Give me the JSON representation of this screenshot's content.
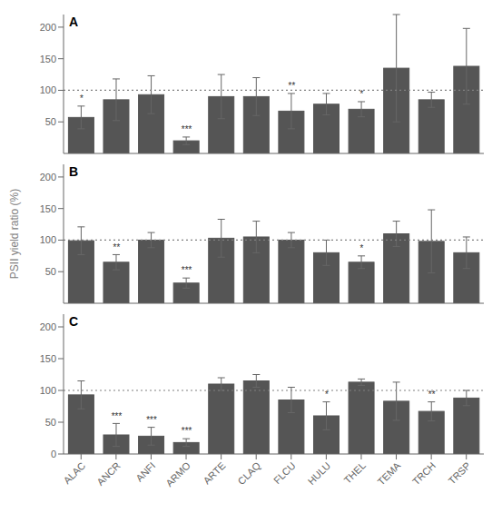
{
  "chart_data": [
    {
      "type": "bar",
      "title": "A",
      "categories": [
        "ALAC",
        "ANCR",
        "ANFI",
        "ARMO",
        "ARTE",
        "CLAQ",
        "FLCU",
        "HULU",
        "THEL",
        "TEMA",
        "TRCH",
        "TRSP"
      ],
      "values": [
        57,
        85,
        93,
        20,
        90,
        90,
        67,
        78,
        70,
        135,
        85,
        138
      ],
      "errors": [
        18,
        33,
        30,
        6,
        35,
        30,
        28,
        17,
        12,
        85,
        12,
        60
      ],
      "annotations": [
        "*",
        null,
        null,
        "***",
        null,
        null,
        "**",
        null,
        "*",
        null,
        null,
        null
      ],
      "color": "#555555",
      "reference_line": 100,
      "ylim": [
        0,
        220
      ],
      "yticks": [
        0,
        50,
        100,
        150,
        200
      ],
      "grid": false,
      "tick_labels": "y"
    },
    {
      "type": "bar",
      "title": "B",
      "ylabel": "PSII yield ratio (%)",
      "categories": [
        "ALAC",
        "ANCR",
        "ANFI",
        "ARMO",
        "ARTE",
        "CLAQ",
        "FLCU",
        "HULU",
        "THEL",
        "TEMA",
        "TRCH",
        "TRSP"
      ],
      "values": [
        99,
        65,
        100,
        32,
        103,
        105,
        100,
        80,
        65,
        110,
        98,
        80
      ],
      "errors": [
        22,
        12,
        12,
        8,
        30,
        25,
        12,
        20,
        10,
        20,
        50,
        25
      ],
      "annotations": [
        null,
        "**",
        null,
        "***",
        null,
        null,
        null,
        null,
        "*",
        null,
        null,
        null
      ],
      "color": "#555555",
      "reference_line": 100,
      "ylim": [
        0,
        220
      ],
      "yticks": [
        0,
        50,
        100,
        150,
        200
      ],
      "grid": false,
      "tick_labels": "y"
    },
    {
      "type": "bar",
      "title": "C",
      "categories": [
        "ALAC",
        "ANCR",
        "ANFI",
        "ARMO",
        "ARTE",
        "CLAQ",
        "FLCU",
        "HULU",
        "THEL",
        "TEMA",
        "TRCH",
        "TRSP"
      ],
      "values": [
        93,
        30,
        28,
        18,
        110,
        115,
        85,
        60,
        113,
        83,
        67,
        88
      ],
      "errors": [
        22,
        18,
        14,
        6,
        10,
        10,
        20,
        22,
        5,
        30,
        15,
        12
      ],
      "annotations": [
        null,
        "***",
        "***",
        "***",
        null,
        null,
        null,
        "*",
        null,
        null,
        "**",
        null
      ],
      "color": "#555555",
      "reference_line": 100,
      "ylim": [
        0,
        220
      ],
      "yticks": [
        0,
        50,
        100,
        150,
        200
      ],
      "grid": false
    }
  ]
}
